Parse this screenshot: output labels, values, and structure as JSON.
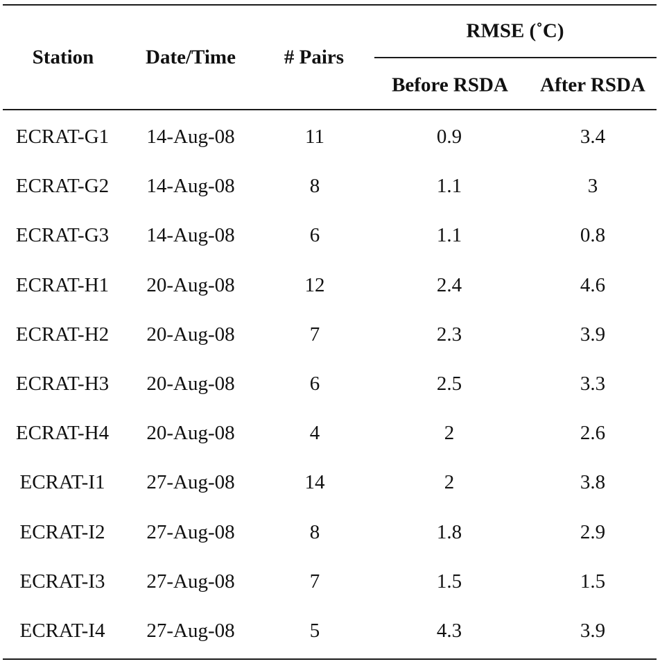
{
  "table": {
    "headers": {
      "station": "Station",
      "datetime": "Date/Time",
      "pairs": "# Pairs",
      "group": "RMSE (˚C)",
      "before": "Before RSDA",
      "after": "After RSDA"
    },
    "rows": [
      {
        "station": "ECRAT-G1",
        "date": "14-Aug-08",
        "pairs": "11",
        "before": "0.9",
        "after": "3.4"
      },
      {
        "station": "ECRAT-G2",
        "date": "14-Aug-08",
        "pairs": "8",
        "before": "1.1",
        "after": "3"
      },
      {
        "station": "ECRAT-G3",
        "date": "14-Aug-08",
        "pairs": "6",
        "before": "1.1",
        "after": "0.8"
      },
      {
        "station": "ECRAT-H1",
        "date": "20-Aug-08",
        "pairs": "12",
        "before": "2.4",
        "after": "4.6"
      },
      {
        "station": "ECRAT-H2",
        "date": "20-Aug-08",
        "pairs": "7",
        "before": "2.3",
        "after": "3.9"
      },
      {
        "station": "ECRAT-H3",
        "date": "20-Aug-08",
        "pairs": "6",
        "before": "2.5",
        "after": "3.3"
      },
      {
        "station": "ECRAT-H4",
        "date": "20-Aug-08",
        "pairs": "4",
        "before": "2",
        "after": "2.6"
      },
      {
        "station": "ECRAT-I1",
        "date": "27-Aug-08",
        "pairs": "14",
        "before": "2",
        "after": "3.8"
      },
      {
        "station": "ECRAT-I2",
        "date": "27-Aug-08",
        "pairs": "8",
        "before": "1.8",
        "after": "2.9"
      },
      {
        "station": "ECRAT-I3",
        "date": "27-Aug-08",
        "pairs": "7",
        "before": "1.5",
        "after": "1.5"
      },
      {
        "station": "ECRAT-I4",
        "date": "27-Aug-08",
        "pairs": "5",
        "before": "4.3",
        "after": "3.9"
      }
    ]
  }
}
